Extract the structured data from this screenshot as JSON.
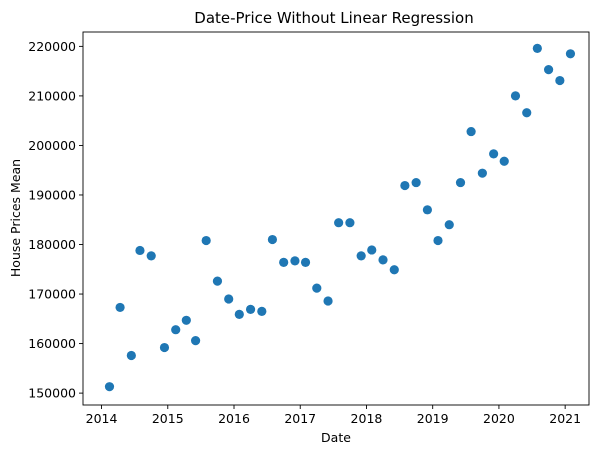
{
  "chart_data": {
    "type": "scatter",
    "title": "Date-Price Without Linear Regression",
    "xlabel": "Date",
    "ylabel": "House Prices Mean",
    "x_ticks": [
      "2014",
      "2015",
      "2016",
      "2017",
      "2018",
      "2019",
      "2020",
      "2021"
    ],
    "y_ticks": [
      "150000",
      "160000",
      "170000",
      "180000",
      "190000",
      "200000",
      "210000",
      "220000"
    ],
    "xlim": [
      2013.72,
      2021.36
    ],
    "ylim": [
      147600,
      222900
    ],
    "grid": false,
    "marker_color": "#1f77b4",
    "series": [
      {
        "x": [
          2014.12,
          2014.28,
          2014.45,
          2014.58,
          2014.75,
          2014.95,
          2015.12,
          2015.28,
          2015.42,
          2015.58,
          2015.75,
          2015.92,
          2016.08,
          2016.25,
          2016.42,
          2016.58,
          2016.75,
          2016.92,
          2017.08,
          2017.25,
          2017.42,
          2017.58,
          2017.75,
          2017.92,
          2018.08,
          2018.25,
          2018.42,
          2018.58,
          2018.75,
          2018.92,
          2019.08,
          2019.25,
          2019.42,
          2019.58,
          2019.75,
          2019.92,
          2020.08,
          2020.25,
          2020.42,
          2020.58,
          2020.75,
          2020.92,
          2021.08
        ],
        "y": [
          151300,
          167300,
          157600,
          178800,
          177700,
          159200,
          162800,
          164700,
          160600,
          180800,
          172600,
          169000,
          165900,
          166900,
          166500,
          181000,
          176400,
          176700,
          176400,
          171200,
          168600,
          184400,
          184400,
          177700,
          178900,
          176900,
          174900,
          191900,
          192500,
          187000,
          180800,
          184000,
          192500,
          202800,
          194400,
          198300,
          196800,
          210000,
          206600,
          219600,
          215300,
          213100,
          218500
        ]
      }
    ]
  }
}
